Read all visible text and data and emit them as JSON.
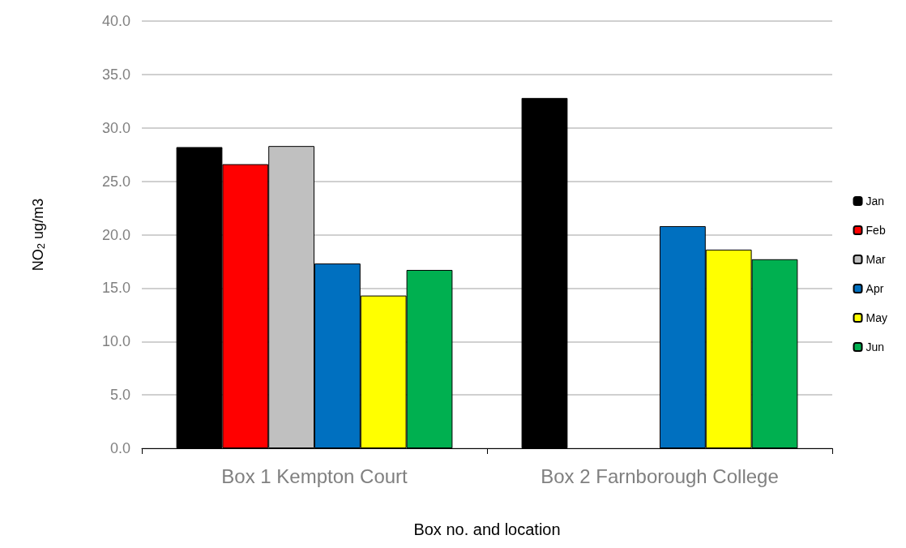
{
  "chart_data": {
    "type": "bar",
    "xlabel": "Box no. and location",
    "ylabel": "NO$_{2}$ ug/m3",
    "categories": [
      "Box 1 Kempton Court",
      "Box 2 Farnborough College"
    ],
    "series": [
      {
        "name": "Jan",
        "color": "#000000",
        "values": [
          28.2,
          32.8
        ]
      },
      {
        "name": "Feb",
        "color": "#ff0000",
        "values": [
          26.6,
          null
        ]
      },
      {
        "name": "Mar",
        "color": "#c0c0c0",
        "values": [
          28.3,
          null
        ]
      },
      {
        "name": "Apr",
        "color": "#0070c0",
        "values": [
          17.3,
          20.8
        ]
      },
      {
        "name": "May",
        "color": "#ffff00",
        "values": [
          14.3,
          18.6
        ]
      },
      {
        "name": "Jun",
        "color": "#00b050",
        "values": [
          16.7,
          17.7
        ]
      }
    ],
    "ylim": [
      0,
      40
    ],
    "yticks": [
      {
        "value": 0,
        "label": "0.0"
      },
      {
        "value": 5,
        "label": "5.0"
      },
      {
        "value": 10,
        "label": "10.0"
      },
      {
        "value": 15,
        "label": "15.0"
      },
      {
        "value": 20,
        "label": "20.0"
      },
      {
        "value": 25,
        "label": "25.0"
      },
      {
        "value": 30,
        "label": "30.0"
      },
      {
        "value": 35,
        "label": "35.0"
      },
      {
        "value": 40,
        "label": "40.0"
      }
    ],
    "grid": "y",
    "legend": "right"
  }
}
